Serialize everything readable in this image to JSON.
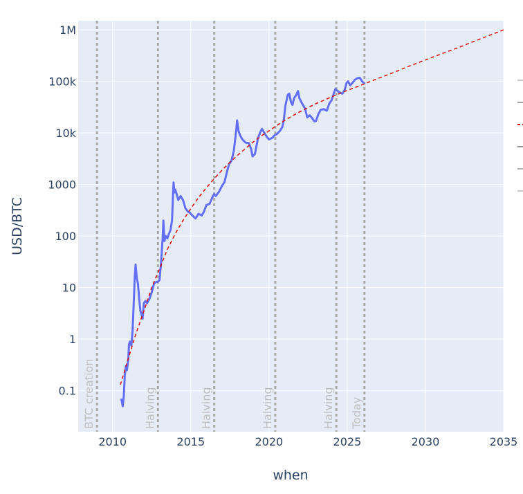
{
  "chart_data": {
    "type": "line",
    "title": "",
    "xlabel": "when",
    "ylabel": "USD/BTC",
    "y_scale": "log",
    "xlim": [
      2007.8,
      2035
    ],
    "ylim": [
      0.016,
      1500000
    ],
    "grid": true,
    "colors": {
      "plot_bg": "#e5ecf6",
      "grid": "#ffffff",
      "price": "#636efa",
      "trend": "#e00000",
      "vline": "#a9a9a9"
    },
    "x_ticks": [
      {
        "value": 2010,
        "label": "2010"
      },
      {
        "value": 2015,
        "label": "2015"
      },
      {
        "value": 2020,
        "label": "2020"
      },
      {
        "value": 2025,
        "label": "2025"
      },
      {
        "value": 2030,
        "label": "2030"
      },
      {
        "value": 2035,
        "label": "2035"
      }
    ],
    "y_ticks": [
      {
        "value": 0.1,
        "label": "0.1"
      },
      {
        "value": 1,
        "label": "1"
      },
      {
        "value": 10,
        "label": "10"
      },
      {
        "value": 100,
        "label": "100"
      },
      {
        "value": 1000,
        "label": "1000"
      },
      {
        "value": 10000,
        "label": "10k"
      },
      {
        "value": 100000,
        "label": "100k"
      },
      {
        "value": 1000000,
        "label": "1M"
      }
    ],
    "vertical_lines": [
      {
        "x": 2009.0,
        "label": "BTC creation"
      },
      {
        "x": 2012.9,
        "label": "Halving"
      },
      {
        "x": 2016.5,
        "label": "Halving"
      },
      {
        "x": 2020.4,
        "label": "Halving"
      },
      {
        "x": 2024.3,
        "label": "Halving"
      },
      {
        "x": 2026.1,
        "label": "Today"
      }
    ],
    "series": [
      {
        "kind": "price",
        "x": [
          2010.55,
          2010.6,
          2010.65,
          2010.72,
          2010.78,
          2010.85,
          2010.92,
          2011.0,
          2011.05,
          2011.12,
          2011.2,
          2011.28,
          2011.35,
          2011.42,
          2011.47,
          2011.55,
          2011.62,
          2011.7,
          2011.78,
          2011.85,
          2011.92,
          2012.0,
          2012.1,
          2012.2,
          2012.35,
          2012.5,
          2012.65,
          2012.8,
          2012.9,
          2013.0,
          2013.1,
          2013.2,
          2013.25,
          2013.28,
          2013.32,
          2013.4,
          2013.5,
          2013.6,
          2013.7,
          2013.8,
          2013.85,
          2013.9,
          2013.95,
          2014.0,
          2014.1,
          2014.2,
          2014.35,
          2014.5,
          2014.65,
          2014.8,
          2014.95,
          2015.1,
          2015.3,
          2015.5,
          2015.7,
          2015.85,
          2016.0,
          2016.2,
          2016.4,
          2016.5,
          2016.6,
          2016.8,
          2017.0,
          2017.15,
          2017.3,
          2017.45,
          2017.6,
          2017.75,
          2017.9,
          2017.96,
          2018.05,
          2018.15,
          2018.3,
          2018.5,
          2018.7,
          2018.85,
          2018.95,
          2019.1,
          2019.3,
          2019.45,
          2019.55,
          2019.7,
          2019.85,
          2020.0,
          2020.2,
          2020.35,
          2020.5,
          2020.7,
          2020.85,
          2020.95,
          2021.05,
          2021.2,
          2021.3,
          2021.4,
          2021.5,
          2021.6,
          2021.75,
          2021.85,
          2021.95,
          2022.1,
          2022.3,
          2022.45,
          2022.6,
          2022.75,
          2022.9,
          2023.0,
          2023.15,
          2023.3,
          2023.5,
          2023.7,
          2023.85,
          2024.0,
          2024.15,
          2024.25,
          2024.4,
          2024.55,
          2024.7,
          2024.85,
          2024.95,
          2025.05,
          2025.2,
          2025.35,
          2025.5,
          2025.65,
          2025.8,
          2025.95,
          2026.1
        ],
        "y": [
          0.07,
          0.06,
          0.05,
          0.08,
          0.2,
          0.3,
          0.25,
          0.4,
          0.8,
          0.9,
          0.75,
          1.5,
          5,
          16,
          28,
          15,
          12,
          6,
          3.5,
          3,
          2.5,
          5,
          5.5,
          5,
          6,
          8,
          12,
          13,
          13,
          14,
          30,
          90,
          200,
          130,
          80,
          100,
          90,
          110,
          130,
          200,
          500,
          1100,
          700,
          800,
          650,
          500,
          600,
          500,
          350,
          300,
          280,
          250,
          220,
          270,
          250,
          300,
          400,
          420,
          580,
          650,
          600,
          720,
          950,
          1100,
          1700,
          2500,
          2900,
          4500,
          11000,
          17500,
          11000,
          9000,
          7500,
          6500,
          6400,
          5000,
          3500,
          3900,
          8000,
          10500,
          12000,
          10000,
          8500,
          7500,
          8000,
          9000,
          9500,
          11000,
          13000,
          18000,
          34000,
          55000,
          58000,
          40000,
          35000,
          47000,
          55000,
          65000,
          47000,
          38000,
          30000,
          20000,
          22000,
          19500,
          16800,
          17000,
          23000,
          28000,
          29000,
          27000,
          37000,
          43000,
          60000,
          71000,
          65000,
          60000,
          58000,
          70000,
          92000,
          100000,
          84000,
          95000,
          108000,
          115000,
          118000,
          100000,
          90000
        ]
      },
      {
        "kind": "trend",
        "x": [
          2010.5,
          2011.0,
          2011.5,
          2012.0,
          2012.5,
          2013.0,
          2013.5,
          2014.0,
          2014.5,
          2015.0,
          2015.5,
          2016.0,
          2016.5,
          2017.0,
          2017.5,
          2018.0,
          2018.5,
          2019.0,
          2019.5,
          2020.0,
          2020.5,
          2021.0,
          2021.5,
          2022.0,
          2022.5,
          2023.0,
          2023.5,
          2024.0,
          2024.5,
          2025.0,
          2025.5,
          2026.0,
          2027.0,
          2028.0,
          2029.0,
          2030.0,
          2031.0,
          2032.0,
          2033.0,
          2034.0,
          2035.0
        ],
        "y": [
          0.13,
          0.42,
          1.3,
          3.5,
          10,
          23,
          55,
          110,
          200,
          340,
          560,
          870,
          1300,
          1900,
          2700,
          3700,
          5000,
          6700,
          8700,
          11000,
          14000,
          17500,
          21500,
          26000,
          31000,
          37000,
          43000,
          50000,
          58000,
          67000,
          76000,
          87000,
          115000,
          150000,
          200000,
          260000,
          340000,
          440000,
          580000,
          760000,
          1000000
        ]
      }
    ]
  }
}
